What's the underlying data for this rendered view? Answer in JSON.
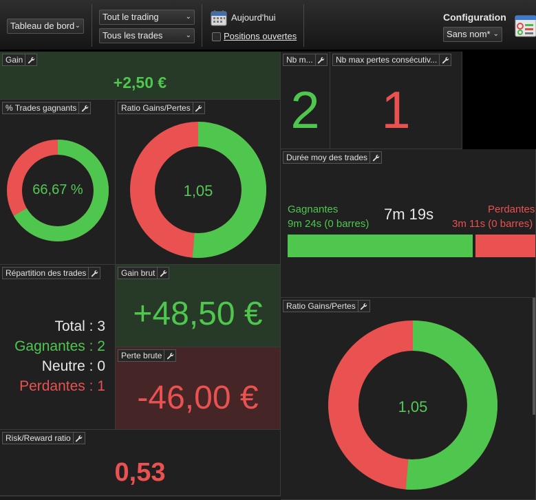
{
  "toolbar": {
    "dashboard_select": "Tableau de bord",
    "trading_select": "Tout le trading",
    "trades_select": "Tous les trades",
    "today_label": "Aujourd'hui",
    "open_positions_label": "Positions ouvertes",
    "config_title": "Configuration",
    "config_select": "Sans nom*"
  },
  "widgets": {
    "gain": {
      "title": "Gain",
      "value": "+2,50 €"
    },
    "nb_max": {
      "title": "Nb m...",
      "value": "2"
    },
    "nb_max_losses": {
      "title": "Nb max pertes consécutiv...",
      "value": "1"
    },
    "win_pct": {
      "title": "% Trades gagnants",
      "value": "66,67 %",
      "ratio": 0.6667
    },
    "ratio1": {
      "title": "Ratio Gains/Pertes",
      "value": "1,05",
      "ratio": 0.513
    },
    "duration": {
      "title": "Durée moy des trades",
      "winners_label": "Gagnantes",
      "winners_value": "9m 24s (0 barres)",
      "average": "7m 19s",
      "losers_label": "Perdantes",
      "losers_value": "3m 11s (0 barres)"
    },
    "distribution": {
      "title": "Répartition des trades",
      "total": "Total : 3",
      "winners": "Gagnantes : 2",
      "neutral": "Neutre : 0",
      "losers": "Perdantes : 1"
    },
    "gross_gain": {
      "title": "Gain brut",
      "value": "+48,50 €"
    },
    "gross_loss": {
      "title": "Perte brute",
      "value": "-46,00 €"
    },
    "ratio2": {
      "title": "Ratio Gains/Pertes",
      "value": "1,05",
      "ratio": 0.513
    },
    "risk_reward": {
      "title": "Risk/Reward ratio",
      "value": "0,53"
    }
  },
  "colors": {
    "green": "#4fc74f",
    "red": "#ea5151",
    "panel": "#202020",
    "gain_bg": "#273a27",
    "loss_bg": "#452525"
  },
  "icons": {
    "widget_menu": "wrench-icon",
    "today": "calendar-icon",
    "config": "dashboard-config-icon"
  }
}
